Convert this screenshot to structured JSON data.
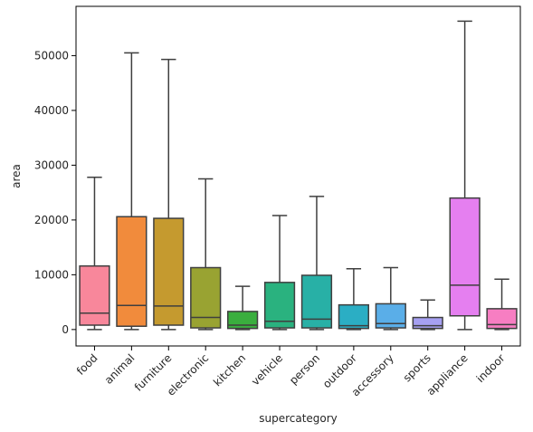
{
  "chart_data": {
    "type": "box",
    "xlabel": "supercategory",
    "ylabel": "area",
    "ylim": [
      -3000,
      59000
    ],
    "yticks": [
      0,
      10000,
      20000,
      30000,
      40000,
      50000
    ],
    "ytick_labels": [
      "0",
      "10000",
      "20000",
      "30000",
      "40000",
      "50000"
    ],
    "categories": [
      {
        "name": "food",
        "color": "#f8879b",
        "whisker_low": 0,
        "q1": 800,
        "median": 3000,
        "q3": 11600,
        "whisker_high": 27800
      },
      {
        "name": "animal",
        "color": "#f18b3c",
        "whisker_low": 0,
        "q1": 600,
        "median": 4400,
        "q3": 20600,
        "whisker_high": 50500
      },
      {
        "name": "furniture",
        "color": "#c59a2f",
        "whisker_low": 0,
        "q1": 800,
        "median": 4300,
        "q3": 20300,
        "whisker_high": 49300
      },
      {
        "name": "electronic",
        "color": "#99a332",
        "whisker_low": 0,
        "q1": 300,
        "median": 2200,
        "q3": 11300,
        "whisker_high": 27500
      },
      {
        "name": "kitchen",
        "color": "#3aae3e",
        "whisker_low": 0,
        "q1": 200,
        "median": 800,
        "q3": 3300,
        "whisker_high": 7900
      },
      {
        "name": "vehicle",
        "color": "#2ab27f",
        "whisker_low": 0,
        "q1": 300,
        "median": 1500,
        "q3": 8600,
        "whisker_high": 20800
      },
      {
        "name": "person",
        "color": "#28b0a6",
        "whisker_low": 0,
        "q1": 300,
        "median": 1900,
        "q3": 9900,
        "whisker_high": 24300
      },
      {
        "name": "outdoor",
        "color": "#2baec4",
        "whisker_low": 0,
        "q1": 200,
        "median": 700,
        "q3": 4500,
        "whisker_high": 11100
      },
      {
        "name": "accessory",
        "color": "#5aaee8",
        "whisker_low": 0,
        "q1": 300,
        "median": 1100,
        "q3": 4700,
        "whisker_high": 11300
      },
      {
        "name": "sports",
        "color": "#a6a0f2",
        "whisker_low": 0,
        "q1": 200,
        "median": 700,
        "q3": 2200,
        "whisker_high": 5400
      },
      {
        "name": "appliance",
        "color": "#e57ff0",
        "whisker_low": 0,
        "q1": 2500,
        "median": 8100,
        "q3": 24000,
        "whisker_high": 56300
      },
      {
        "name": "indoor",
        "color": "#f77ec2",
        "whisker_low": 0,
        "q1": 200,
        "median": 900,
        "q3": 3800,
        "whisker_high": 9200
      }
    ]
  }
}
